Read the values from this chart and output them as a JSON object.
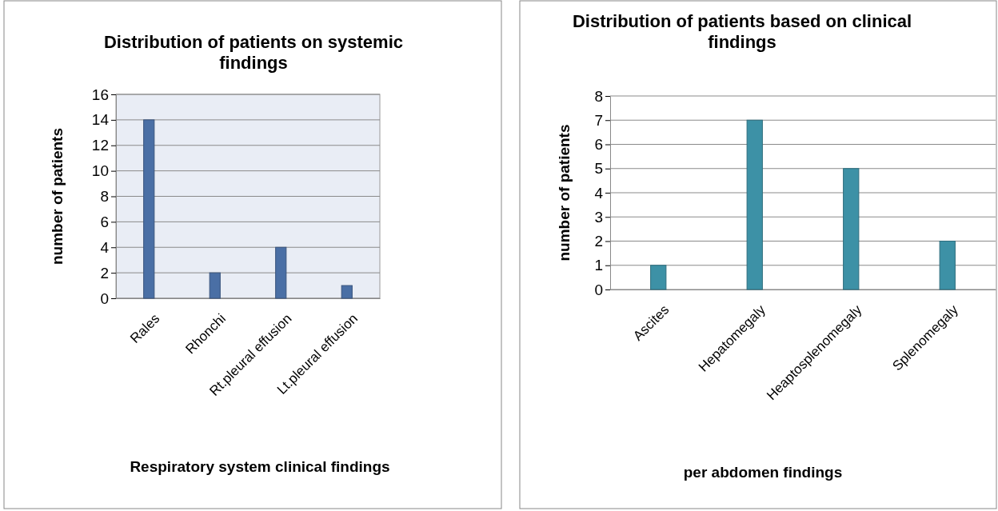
{
  "chart_data": [
    {
      "type": "bar",
      "title": "Distribution of patients on systemic findings",
      "xlabel": "Respiratory system clinical findings",
      "ylabel": "number of patients",
      "categories": [
        "Rales",
        "Rhonchi",
        "Rt.pleural effusion",
        "Lt.pleural effusion"
      ],
      "values": [
        14,
        2,
        4,
        1
      ],
      "color": "#4a6fa5",
      "ylim": [
        0,
        16
      ],
      "yticks": [
        0,
        2,
        4,
        6,
        8,
        10,
        12,
        14,
        16
      ],
      "grid": "y"
    },
    {
      "type": "bar",
      "title": "Distribution of patients based on clinical findings",
      "xlabel": "per abdomen findings",
      "ylabel": "number of patients",
      "categories": [
        "Ascites",
        "Hepatomegaly",
        "Heaptosplenomegaly",
        "Splenomegaly"
      ],
      "values": [
        1,
        7,
        5,
        2
      ],
      "color": "#3d91a6",
      "ylim": [
        0,
        8
      ],
      "yticks": [
        0,
        1,
        2,
        3,
        4,
        5,
        6,
        7,
        8
      ],
      "grid": "y"
    }
  ]
}
